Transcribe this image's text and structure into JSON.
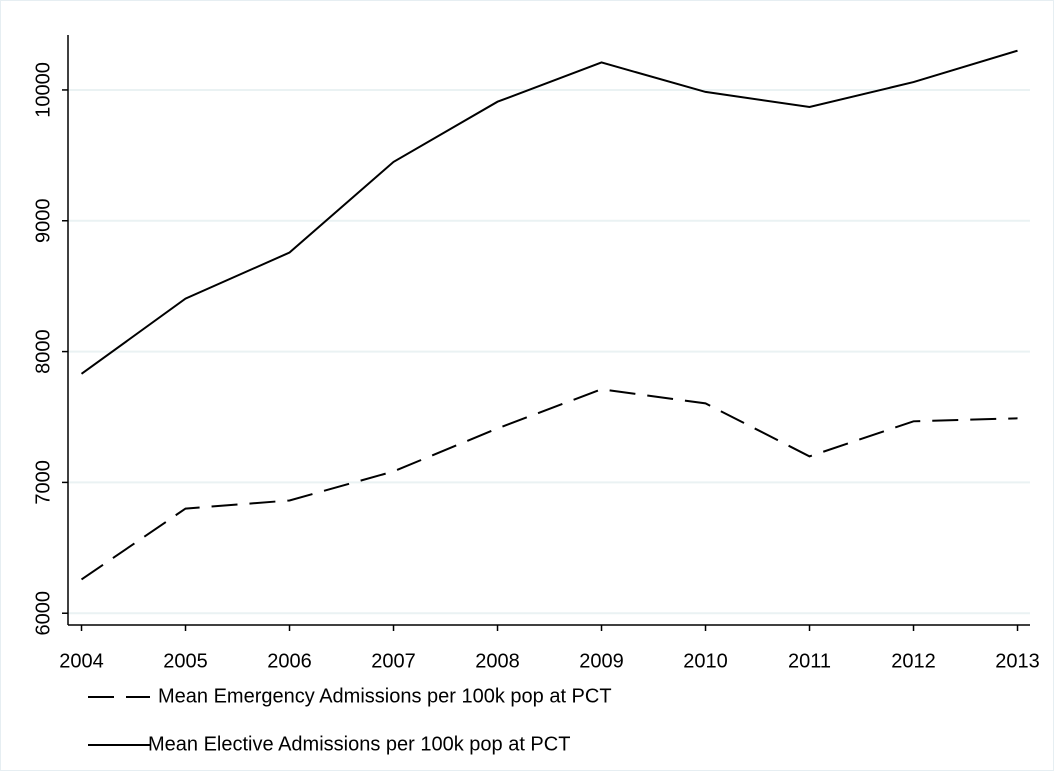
{
  "chart_data": {
    "type": "line",
    "x": [
      2004,
      2005,
      2006,
      2007,
      2008,
      2009,
      2010,
      2011,
      2012,
      2013
    ],
    "series": [
      {
        "name": "Mean Emergency Admissions per 100k pop at PCT",
        "color": "#000000",
        "line_style": "dashed",
        "values": [
          6258,
          6800,
          6862,
          7084,
          7413,
          7712,
          7604,
          7199,
          7467,
          7490
        ]
      },
      {
        "name": "Mean Elective Admissions per 100k pop at PCT",
        "color": "#000000",
        "line_style": "solid",
        "values": [
          7830,
          8405,
          8757,
          9450,
          9910,
          10210,
          9985,
          9870,
          10060,
          10300
        ]
      }
    ],
    "xlim": [
      2003.87,
      2013.12
    ],
    "xticks": [
      2004,
      2005,
      2006,
      2007,
      2008,
      2009,
      2010,
      2011,
      2012,
      2013
    ],
    "ylim": [
      5910,
      10420
    ],
    "yticks": [
      6000,
      7000,
      8000,
      9000,
      10000
    ],
    "grid": true,
    "legend": "bottom"
  }
}
